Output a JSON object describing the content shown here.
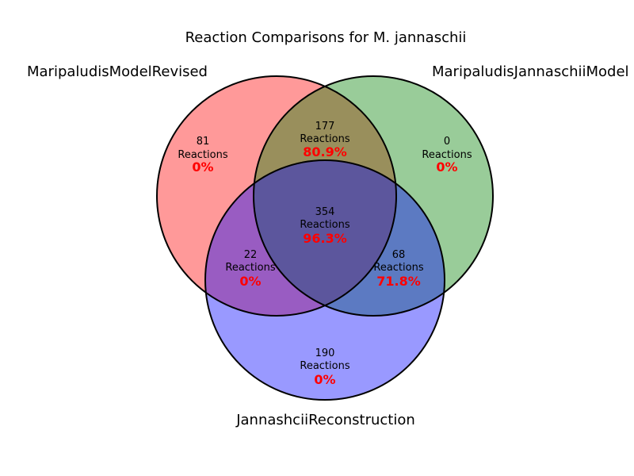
{
  "title": "Reaction Comparisons for M. jannaschii",
  "sets": [
    {
      "name": "MaripaludisModelRevised",
      "color": "#ff0000"
    },
    {
      "name": "MaripaludisJannaschiiModel",
      "color": "#008000"
    },
    {
      "name": "JannashciiReconstruction",
      "color": "#0000ff"
    }
  ],
  "regions": [
    {
      "id": "a-only",
      "count": "81",
      "unit": "Reactions",
      "percent": "0%"
    },
    {
      "id": "b-only",
      "count": "0",
      "unit": "Reactions",
      "percent": "0%"
    },
    {
      "id": "ab",
      "count": "177",
      "unit": "Reactions",
      "percent": "80.9%"
    },
    {
      "id": "abc",
      "count": "354",
      "unit": "Reactions",
      "percent": "96.3%"
    },
    {
      "id": "ac",
      "count": "22",
      "unit": "Reactions",
      "percent": "0%"
    },
    {
      "id": "bc",
      "count": "68",
      "unit": "Reactions",
      "percent": "71.8%"
    },
    {
      "id": "c-only",
      "count": "190",
      "unit": "Reactions",
      "percent": "0%"
    }
  ],
  "percent_color": "#ff0000"
}
